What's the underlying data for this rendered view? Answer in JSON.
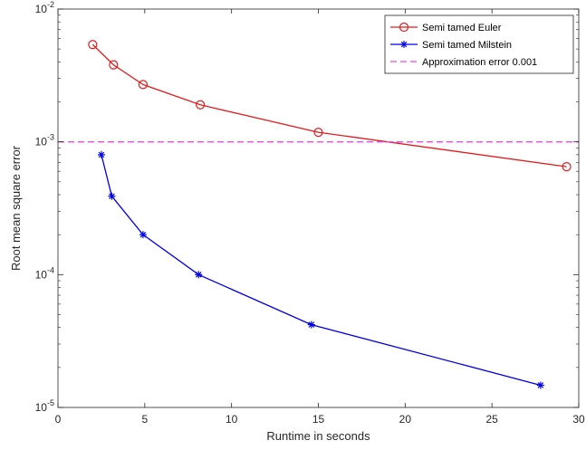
{
  "chart_data": {
    "type": "line",
    "title": "",
    "xlabel": "Runtime in seconds",
    "ylabel": "Root mean square error",
    "xlim": [
      0,
      30
    ],
    "ylim": [
      1e-05,
      0.01
    ],
    "yscale": "log",
    "grid": false,
    "legend_position": "top-right",
    "x_ticks": [
      0,
      5,
      10,
      15,
      20,
      25,
      30
    ],
    "x_tick_labels": [
      "0",
      "5",
      "10",
      "15",
      "20",
      "25",
      "30"
    ],
    "y_ticks": [
      1e-05,
      0.0001,
      0.001,
      0.01
    ],
    "y_tick_labels": [
      {
        "base": "10",
        "exp": "-5"
      },
      {
        "base": "10",
        "exp": "-4"
      },
      {
        "base": "10",
        "exp": "-3"
      },
      {
        "base": "10",
        "exp": "-2"
      }
    ],
    "series": [
      {
        "name": "Semi tamed Euler",
        "color": "#e31a1c",
        "marker": "circle",
        "line_style": "solid",
        "x": [
          2.0,
          3.2,
          4.9,
          8.2,
          15.0,
          29.3
        ],
        "y": [
          0.0054,
          0.0038,
          0.0027,
          0.0019,
          0.00118,
          0.00065
        ]
      },
      {
        "name": "Semi tamed Milstein",
        "color": "#0000e6",
        "marker": "star",
        "line_style": "solid",
        "x": [
          2.5,
          3.1,
          4.9,
          8.1,
          14.6,
          27.8
        ],
        "y": [
          0.0008,
          0.00039,
          0.0002,
          0.0001,
          4.2e-05,
          1.47e-05
        ]
      },
      {
        "name": "Approximation error 0.001",
        "color": "#e64ce6",
        "marker": "none",
        "line_style": "dashed",
        "x": [
          0,
          30
        ],
        "y": [
          0.001,
          0.001
        ]
      }
    ]
  }
}
